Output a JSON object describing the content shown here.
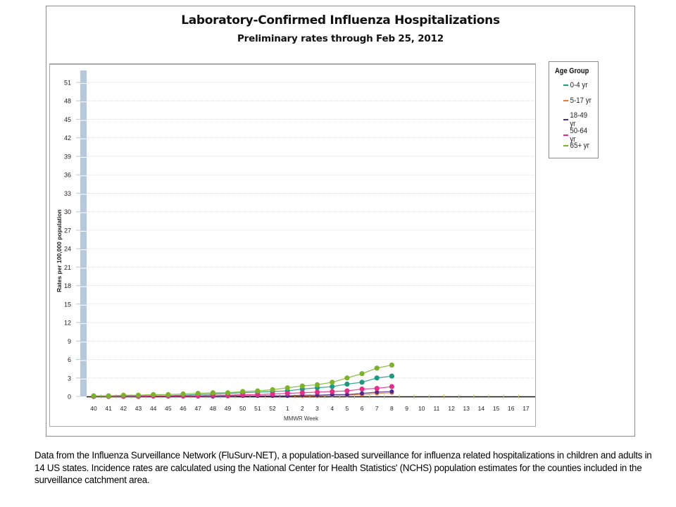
{
  "chart_data": {
    "type": "line",
    "title": "Laboratory-Confirmed Influenza Hospitalizations",
    "subtitle": "Preliminary rates through Feb 25, 2012",
    "xlabel": "MMWR Week",
    "ylabel": "Rates per 100,000 population",
    "ylim": [
      0,
      52
    ],
    "yticks": [
      0,
      3,
      6,
      9,
      12,
      15,
      18,
      21,
      24,
      27,
      30,
      33,
      36,
      39,
      42,
      45,
      48,
      51
    ],
    "categories": [
      "40",
      "41",
      "42",
      "43",
      "44",
      "45",
      "46",
      "47",
      "48",
      "49",
      "50",
      "51",
      "52",
      "1",
      "2",
      "3",
      "4",
      "5",
      "6",
      "7",
      "8",
      "9",
      "10",
      "11",
      "12",
      "13",
      "14",
      "15",
      "16",
      "17"
    ],
    "grid": true,
    "legend_title": "Age Group",
    "legend_position": "right",
    "series": [
      {
        "name": "0-4 yr",
        "color": "#1a9a80",
        "values": [
          0.0,
          0.0,
          0.1,
          0.1,
          0.1,
          0.1,
          0.2,
          0.3,
          0.4,
          0.5,
          0.6,
          0.7,
          0.8,
          0.9,
          1.2,
          1.4,
          1.6,
          2.0,
          2.3,
          3.0,
          3.3
        ]
      },
      {
        "name": "5-17 yr",
        "color": "#e87a2a",
        "values": [
          0.0,
          0.0,
          0.0,
          0.0,
          0.0,
          0.0,
          0.0,
          0.0,
          0.0,
          0.0,
          0.1,
          0.1,
          0.1,
          0.1,
          0.1,
          0.1,
          0.2,
          0.2,
          0.3,
          0.5,
          0.6
        ]
      },
      {
        "name": "18-49 yr",
        "color": "#4b2a8c",
        "values": [
          0.0,
          0.0,
          0.0,
          0.0,
          0.0,
          0.0,
          0.0,
          0.0,
          0.0,
          0.1,
          0.1,
          0.1,
          0.1,
          0.1,
          0.2,
          0.2,
          0.3,
          0.3,
          0.5,
          0.7,
          0.8
        ]
      },
      {
        "name": "50-64 yr",
        "color": "#e62d8a",
        "values": [
          0.0,
          0.0,
          0.0,
          0.0,
          0.1,
          0.1,
          0.1,
          0.1,
          0.2,
          0.2,
          0.3,
          0.3,
          0.4,
          0.5,
          0.6,
          0.7,
          0.8,
          0.9,
          1.2,
          1.3,
          1.6
        ]
      },
      {
        "name": "65+ yr",
        "color": "#7cb428",
        "values": [
          0.1,
          0.1,
          0.2,
          0.2,
          0.3,
          0.3,
          0.4,
          0.5,
          0.6,
          0.6,
          0.8,
          0.9,
          1.1,
          1.4,
          1.7,
          1.9,
          2.3,
          3.0,
          3.7,
          4.6,
          5.1
        ]
      }
    ]
  },
  "chart": {
    "title": "Laboratory-Confirmed Influenza Hospitalizations",
    "subtitle": "Preliminary rates through Feb 25, 2012",
    "xlabel": "MMWR Week",
    "ylabel": "Rates per 100,000 population"
  },
  "legend": {
    "title": "Age Group",
    "items": [
      {
        "label": "0-4 yr",
        "color": "#1a9a80"
      },
      {
        "label": "5-17 yr",
        "color": "#e87a2a"
      },
      {
        "label": "18-49 yr",
        "color": "#4b2a8c"
      },
      {
        "label": "50-64 yr",
        "color": "#e62d8a"
      },
      {
        "label": "65+ yr",
        "color": "#7cb428"
      }
    ]
  },
  "footnote": {
    "text": "Data from the Influenza  Surveillance Network (FluSurv-NET),  a population-based surveillance  for influenza  related hospitalizations in children and adults in 14 US states.  Incidence rates are calculated using the National Center for Health Statistics' (NCHS) population estimates for the counties included in the surveillance  catchment  area."
  }
}
